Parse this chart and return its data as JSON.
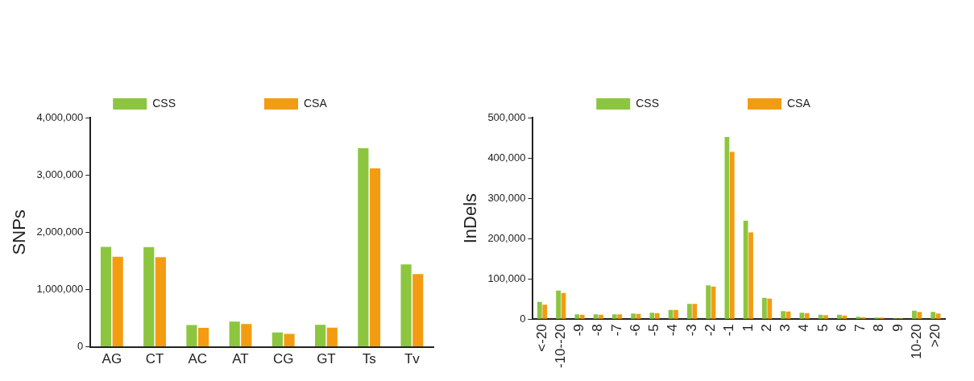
{
  "chart_data": [
    {
      "type": "bar",
      "ylabel": "SNPs",
      "categories": [
        "AG",
        "CT",
        "AC",
        "AT",
        "CG",
        "GT",
        "Ts",
        "Tv"
      ],
      "ylim": [
        0,
        4000000
      ],
      "yticks": [
        {
          "value": 0,
          "label": "0"
        },
        {
          "value": 1000000,
          "label": "1,000,000"
        },
        {
          "value": 2000000,
          "label": "2,000,000"
        },
        {
          "value": 3000000,
          "label": "3,000,000"
        },
        {
          "value": 4000000,
          "label": "4,000,000"
        }
      ],
      "legend": "top",
      "grid": false,
      "series": [
        {
          "name": "CSS",
          "color": "#8cc63f",
          "values": [
            1745000,
            1740000,
            380000,
            440000,
            250000,
            385000,
            3466000,
            1440000
          ]
        },
        {
          "name": "CSA",
          "color": "#f39c12",
          "values": [
            1573000,
            1566000,
            330000,
            400000,
            225000,
            335000,
            3115000,
            1270000
          ]
        }
      ]
    },
    {
      "type": "bar",
      "ylabel": "InDels",
      "categories": [
        "<-20",
        "-10--20",
        "-9",
        "-8",
        "-7",
        "-6",
        "-5",
        "-4",
        "-3",
        "-2",
        "-1",
        "1",
        "2",
        "3",
        "4",
        "5",
        "6",
        "7",
        "8",
        "9",
        "10-20",
        ">20"
      ],
      "ylim": [
        0,
        500000
      ],
      "yticks": [
        {
          "value": 0,
          "label": "0"
        },
        {
          "value": 100000,
          "label": "100,000"
        },
        {
          "value": 200000,
          "label": "200,000"
        },
        {
          "value": 300000,
          "label": "300,000"
        },
        {
          "value": 400000,
          "label": "400,000"
        },
        {
          "value": 500000,
          "label": "500,000"
        }
      ],
      "legend": "top",
      "grid": false,
      "series": [
        {
          "name": "CSS",
          "color": "#8cc63f",
          "values": [
            43000,
            71000,
            12000,
            12000,
            12000,
            14000,
            16000,
            23000,
            38000,
            84000,
            452000,
            244000,
            53000,
            20000,
            16000,
            11000,
            11000,
            6000,
            4000,
            2000,
            21000,
            18000
          ]
        },
        {
          "name": "CSA",
          "color": "#f39c12",
          "values": [
            36000,
            65000,
            11000,
            11000,
            12000,
            13000,
            15000,
            23000,
            38000,
            81000,
            415000,
            215000,
            51000,
            19000,
            15000,
            10000,
            9000,
            5000,
            4000,
            2000,
            18000,
            14000
          ]
        }
      ]
    }
  ]
}
